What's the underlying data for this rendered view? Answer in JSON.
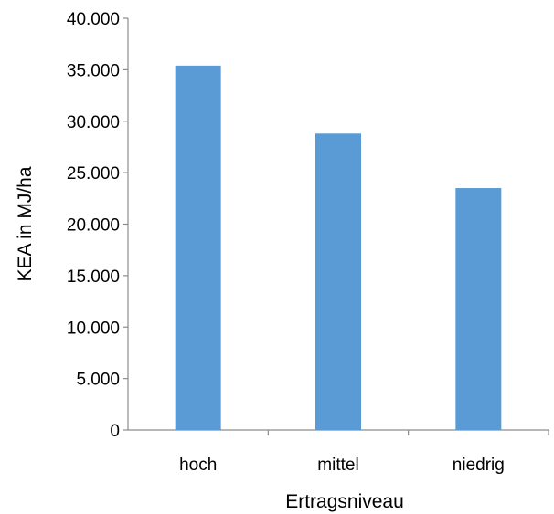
{
  "chart_data": {
    "type": "bar",
    "categories": [
      "hoch",
      "mittel",
      "niedrig"
    ],
    "values": [
      35400,
      28800,
      23500
    ],
    "title": "",
    "xlabel": "Ertragsniveau",
    "ylabel": "KEA in MJ/ha",
    "ylim": [
      0,
      40000
    ],
    "ytick_values": [
      0,
      5000,
      10000,
      15000,
      20000,
      25000,
      30000,
      35000,
      40000
    ],
    "ytick_labels": [
      "0",
      "5.000",
      "10.000",
      "15.000",
      "20.000",
      "25.000",
      "30.000",
      "35.000",
      "40.000"
    ],
    "bar_color": "#5B9BD5",
    "grid": false,
    "legend": "none"
  }
}
